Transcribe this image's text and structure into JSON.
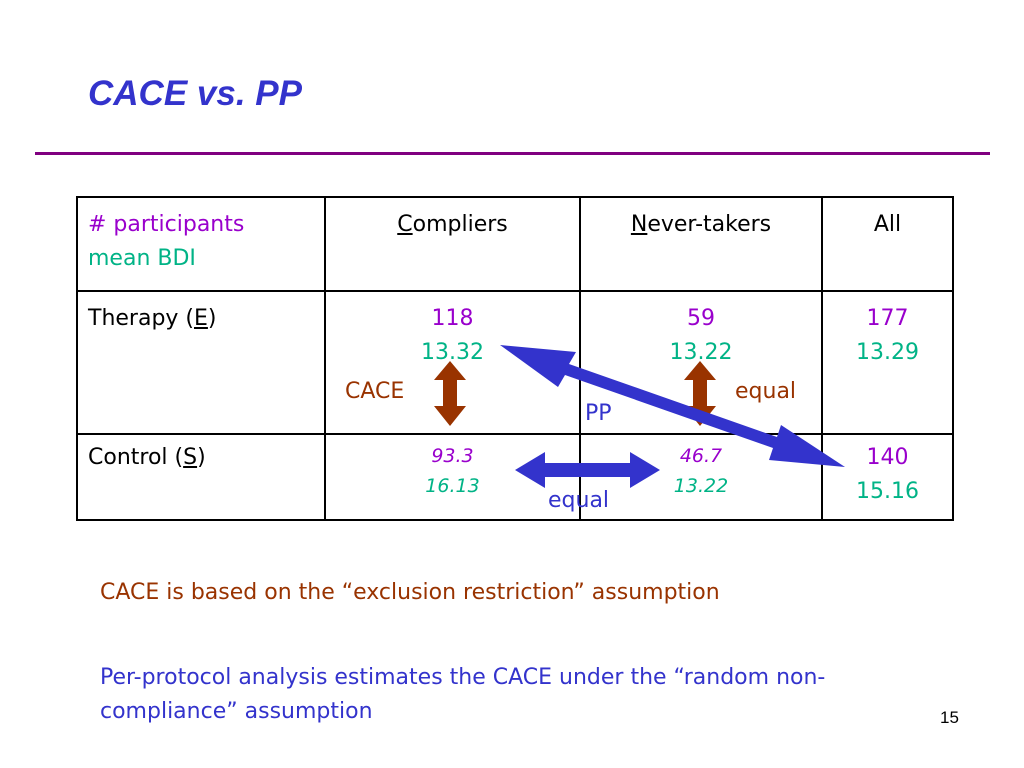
{
  "title": "CACE vs. PP",
  "table": {
    "header": {
      "legend": [
        "# participants",
        "mean BDI"
      ],
      "columns": [
        "Compliers",
        "Never-takers",
        "All"
      ]
    },
    "rows": [
      {
        "label_parts": [
          "Therapy (",
          "E",
          ")"
        ],
        "cells": [
          [
            118,
            13.32
          ],
          [
            59,
            13.22
          ],
          [
            177,
            13.29
          ]
        ]
      },
      {
        "label_parts": [
          "Control (",
          "S",
          ")"
        ],
        "cells": [
          [
            93.3,
            16.13
          ],
          [
            46.7,
            13.22
          ],
          [
            140,
            15.16
          ]
        ]
      }
    ]
  },
  "annotations": {
    "cace": "CACE",
    "equal_right": "equal",
    "pp": "PP",
    "equal_bottom": "equal"
  },
  "notes": [
    "CACE is based on the “exclusion restriction” assumption",
    "Per-protocol analysis estimates the CACE under the “random non-compliance” assumption"
  ],
  "page_number": 15
}
